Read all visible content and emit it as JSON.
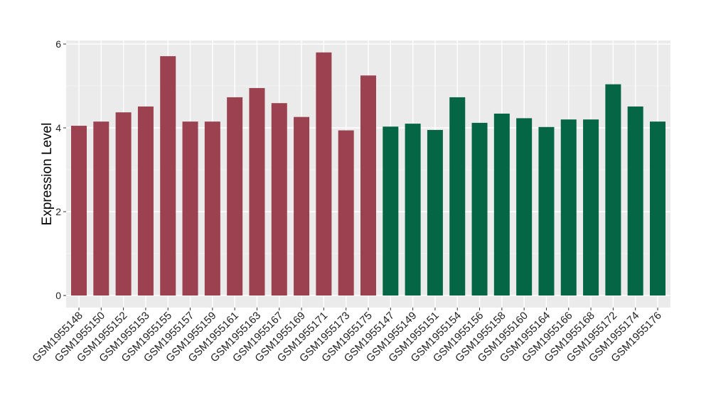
{
  "chart_data": {
    "type": "bar",
    "title": "",
    "xlabel": "",
    "ylabel": "Expression Level",
    "ylim": [
      0,
      6.1
    ],
    "yticks": [
      0,
      2,
      4,
      6
    ],
    "grid": true,
    "legend": "none",
    "colors": {
      "group_a": "#9b4150",
      "group_b": "#046645",
      "panel": "#ebebeb",
      "gridline": "#ffffff"
    },
    "categories": [
      "GSM1955148",
      "GSM1955150",
      "GSM1955152",
      "GSM1955153",
      "GSM1955155",
      "GSM1955157",
      "GSM1955159",
      "GSM1955161",
      "GSM1955163",
      "GSM1955167",
      "GSM1955169",
      "GSM1955171",
      "GSM1955173",
      "GSM1955175",
      "GSM1955147",
      "GSM1955149",
      "GSM1955151",
      "GSM1955154",
      "GSM1955156",
      "GSM1955158",
      "GSM1955160",
      "GSM1955164",
      "GSM1955166",
      "GSM1955168",
      "GSM1955172",
      "GSM1955174",
      "GSM1955176"
    ],
    "values": [
      4.05,
      4.15,
      4.37,
      4.51,
      5.71,
      4.15,
      4.15,
      4.73,
      4.95,
      4.59,
      4.26,
      5.8,
      3.94,
      5.25,
      4.03,
      4.1,
      3.95,
      4.73,
      4.12,
      4.34,
      4.23,
      4.02,
      4.2,
      4.2,
      5.04,
      4.51,
      4.15
    ],
    "groups": [
      "a",
      "a",
      "a",
      "a",
      "a",
      "a",
      "a",
      "a",
      "a",
      "a",
      "a",
      "a",
      "a",
      "a",
      "b",
      "b",
      "b",
      "b",
      "b",
      "b",
      "b",
      "b",
      "b",
      "b",
      "b",
      "b",
      "b"
    ]
  }
}
